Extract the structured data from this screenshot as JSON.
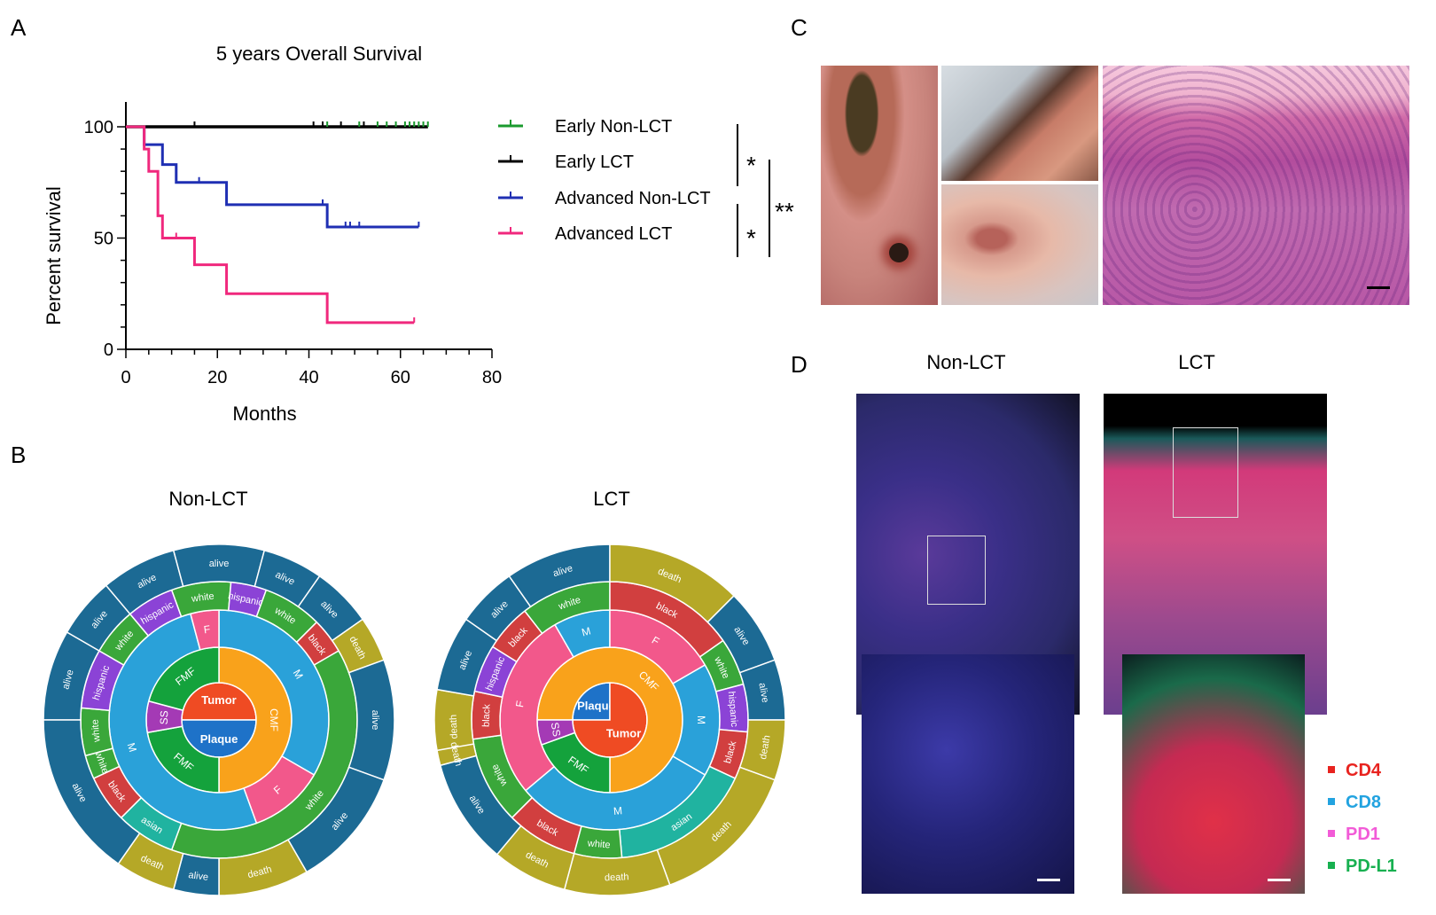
{
  "panels": {
    "A": "A",
    "B": "B",
    "C": "C",
    "D": "D"
  },
  "panelA": {
    "title": "5 years Overall Survival",
    "xlabel": "Months",
    "ylabel": "Percent survival",
    "xticks": [
      "0",
      "20",
      "40",
      "60",
      "80"
    ],
    "yticks": [
      "0",
      "50",
      "100"
    ],
    "legend": [
      {
        "name": "Early Non-LCT",
        "color": "#1a9a2e"
      },
      {
        "name": "Early LCT",
        "color": "#000000"
      },
      {
        "name": "Advanced Non-LCT",
        "color": "#1f2fb3"
      },
      {
        "name": "Advanced LCT",
        "color": "#f0287d"
      }
    ],
    "sig": {
      "s1": "*",
      "s2": "*",
      "s3": "**"
    }
  },
  "chart_data": {
    "type": "line",
    "title": "5 years Overall Survival",
    "xlabel": "Months",
    "ylabel": "Percent survival",
    "xlim": [
      0,
      80
    ],
    "ylim": [
      0,
      100
    ],
    "series": [
      {
        "name": "Early Non-LCT",
        "color": "#1a9a2e",
        "steps": [
          [
            0,
            100
          ],
          [
            66,
            100
          ]
        ],
        "censor": [
          44,
          51,
          55,
          57,
          59,
          61,
          62,
          63,
          64,
          65,
          66
        ]
      },
      {
        "name": "Early LCT",
        "color": "#000000",
        "steps": [
          [
            0,
            100
          ],
          [
            66,
            100
          ]
        ],
        "censor": [
          15,
          41,
          43,
          47,
          52
        ]
      },
      {
        "name": "Advanced Non-LCT",
        "color": "#1f2fb3",
        "steps": [
          [
            0,
            100
          ],
          [
            4,
            100
          ],
          [
            4,
            92
          ],
          [
            8,
            92
          ],
          [
            8,
            83
          ],
          [
            11,
            83
          ],
          [
            11,
            75
          ],
          [
            22,
            75
          ],
          [
            22,
            65
          ],
          [
            44,
            65
          ],
          [
            44,
            55
          ],
          [
            64,
            55
          ]
        ],
        "censor": [
          16,
          43,
          48,
          49,
          51,
          64
        ]
      },
      {
        "name": "Advanced LCT",
        "color": "#f0287d",
        "steps": [
          [
            0,
            100
          ],
          [
            4,
            100
          ],
          [
            4,
            90
          ],
          [
            5,
            90
          ],
          [
            5,
            80
          ],
          [
            7,
            80
          ],
          [
            7,
            60
          ],
          [
            8,
            60
          ],
          [
            8,
            50
          ],
          [
            15,
            50
          ],
          [
            15,
            38
          ],
          [
            22,
            38
          ],
          [
            22,
            25
          ],
          [
            44,
            25
          ],
          [
            44,
            12
          ],
          [
            63,
            12
          ]
        ],
        "censor": [
          11,
          63
        ]
      }
    ]
  },
  "panelB": {
    "left_title": "Non-LCT",
    "right_title": "LCT"
  },
  "panelD": {
    "left_title": "Non-LCT",
    "right_title": "LCT",
    "legend": [
      {
        "name": "CD4",
        "color": "#e8231f"
      },
      {
        "name": "CD8",
        "color": "#22a3e0"
      },
      {
        "name": "PD1",
        "color": "#f25bd7"
      },
      {
        "name": "PD-L1",
        "color": "#17b050"
      }
    ]
  },
  "sunburst_left": {
    "center": [
      {
        "label": "Tumor",
        "color": "#ef4b23",
        "a0": -90,
        "a1": 90
      },
      {
        "label": "Plaque",
        "color": "#1e72c8",
        "a0": 90,
        "a1": 270
      }
    ],
    "ring1": [
      {
        "label": "CMF",
        "color": "#f9a21b",
        "a0": 0,
        "a1": 180
      },
      {
        "label": "FMF",
        "color": "#14a23c",
        "a0": 180,
        "a1": 260
      },
      {
        "label": "SS",
        "color": "#a43ab5",
        "a0": 260,
        "a1": 285
      },
      {
        "label": "FMF",
        "color": "#14a23c",
        "a0": 285,
        "a1": 360
      }
    ],
    "ring2": [
      {
        "label": "M",
        "color": "#2aa1d9",
        "a0": 0,
        "a1": 120
      },
      {
        "label": "F",
        "color": "#f2588b",
        "a0": 120,
        "a1": 160
      },
      {
        "label": "M",
        "color": "#2aa1d9",
        "a0": 160,
        "a1": 345
      },
      {
        "label": "F",
        "color": "#f2588b",
        "a0": 345,
        "a1": 360
      }
    ],
    "ring3": [
      {
        "label": "white",
        "color": "#3aa73a",
        "a0": -105,
        "a1": -85
      },
      {
        "label": "hispanic",
        "color": "#8b43d6",
        "a0": -85,
        "a1": -60
      },
      {
        "label": "white",
        "color": "#3aa73a",
        "a0": -60,
        "a1": -40
      },
      {
        "label": "hispanic",
        "color": "#8b43d6",
        "a0": -40,
        "a1": -20
      },
      {
        "label": "white",
        "color": "#3aa73a",
        "a0": -20,
        "a1": 5
      },
      {
        "label": "hispanic",
        "color": "#8b43d6",
        "a0": 5,
        "a1": 20
      },
      {
        "label": "white",
        "color": "#3aa73a",
        "a0": 20,
        "a1": 45
      },
      {
        "label": "black",
        "color": "#d13f3f",
        "a0": 45,
        "a1": 60
      },
      {
        "label": "white",
        "color": "#3aa73a",
        "a0": 60,
        "a1": 200
      },
      {
        "label": "asian",
        "color": "#20b3a0",
        "a0": 200,
        "a1": 225
      },
      {
        "label": "black",
        "color": "#d13f3f",
        "a0": 225,
        "a1": 245
      },
      {
        "label": "white",
        "color": "#3aa73a",
        "a0": 245,
        "a1": 255
      }
    ],
    "ring4": [
      {
        "label": "alive",
        "color": "#1c6a94",
        "a0": -90,
        "a1": -60
      },
      {
        "label": "alive",
        "color": "#1c6a94",
        "a0": -60,
        "a1": -40
      },
      {
        "label": "alive",
        "color": "#1c6a94",
        "a0": -40,
        "a1": -15
      },
      {
        "label": "alive",
        "color": "#1c6a94",
        "a0": -15,
        "a1": 15
      },
      {
        "label": "alive",
        "color": "#1c6a94",
        "a0": 15,
        "a1": 35
      },
      {
        "label": "alive",
        "color": "#1c6a94",
        "a0": 35,
        "a1": 55
      },
      {
        "label": "death",
        "color": "#b5a827",
        "a0": 55,
        "a1": 70
      },
      {
        "label": "alive",
        "color": "#1c6a94",
        "a0": 70,
        "a1": 110
      },
      {
        "label": "alive",
        "color": "#1c6a94",
        "a0": 110,
        "a1": 150
      },
      {
        "label": "death",
        "color": "#b5a827",
        "a0": 150,
        "a1": 180
      },
      {
        "label": "alive",
        "color": "#1c6a94",
        "a0": 180,
        "a1": 195
      },
      {
        "label": "death",
        "color": "#b5a827",
        "a0": 195,
        "a1": 215
      },
      {
        "label": "alive",
        "color": "#1c6a94",
        "a0": 215,
        "a1": 270
      }
    ]
  },
  "sunburst_right": {
    "center": [
      {
        "label": "Plaque",
        "color": "#1e72c8",
        "a0": -90,
        "a1": 0
      },
      {
        "label": "Tumor",
        "color": "#ef4b23",
        "a0": 0,
        "a1": 270
      }
    ],
    "ring1": [
      {
        "label": "CMF",
        "color": "#f9a21b",
        "a0": -90,
        "a1": 180
      },
      {
        "label": "FMF",
        "color": "#14a23c",
        "a0": 180,
        "a1": 250
      },
      {
        "label": "SS",
        "color": "#a43ab5",
        "a0": 250,
        "a1": 270
      }
    ],
    "ring2": [
      {
        "label": "F",
        "color": "#f2588b",
        "a0": -130,
        "a1": -30
      },
      {
        "label": "M",
        "color": "#2aa1d9",
        "a0": -30,
        "a1": 0
      },
      {
        "label": "F",
        "color": "#f2588b",
        "a0": 0,
        "a1": 60
      },
      {
        "label": "M",
        "color": "#2aa1d9",
        "a0": 60,
        "a1": 120
      },
      {
        "label": "M",
        "color": "#2aa1d9",
        "a0": 120,
        "a1": 230
      }
    ],
    "ring3": [
      {
        "label": "white",
        "color": "#3aa73a",
        "a0": -135,
        "a1": -98
      },
      {
        "label": "black",
        "color": "#d13f3f",
        "a0": -98,
        "a1": -78
      },
      {
        "label": "hispanic",
        "color": "#8b43d6",
        "a0": -78,
        "a1": -58
      },
      {
        "label": "black",
        "color": "#d13f3f",
        "a0": -58,
        "a1": -38
      },
      {
        "label": "white",
        "color": "#3aa73a",
        "a0": -38,
        "a1": 0
      },
      {
        "label": "black",
        "color": "#d13f3f",
        "a0": 0,
        "a1": 55
      },
      {
        "label": "white",
        "color": "#3aa73a",
        "a0": 55,
        "a1": 75
      },
      {
        "label": "hispanic",
        "color": "#8b43d6",
        "a0": 75,
        "a1": 95
      },
      {
        "label": "black",
        "color": "#d13f3f",
        "a0": 95,
        "a1": 115
      },
      {
        "label": "asian",
        "color": "#20b3a0",
        "a0": 115,
        "a1": 175
      },
      {
        "label": "white",
        "color": "#3aa73a",
        "a0": 175,
        "a1": 195
      },
      {
        "label": "black",
        "color": "#d13f3f",
        "a0": 195,
        "a1": 225
      }
    ],
    "ring4": [
      {
        "label": "death",
        "color": "#b5a827",
        "a0": -105,
        "a1": -80
      },
      {
        "label": "alive",
        "color": "#1c6a94",
        "a0": -80,
        "a1": -55
      },
      {
        "label": "alive",
        "color": "#1c6a94",
        "a0": -55,
        "a1": -35
      },
      {
        "label": "alive",
        "color": "#1c6a94",
        "a0": -35,
        "a1": 0
      },
      {
        "label": "death",
        "color": "#b5a827",
        "a0": 0,
        "a1": 45
      },
      {
        "label": "alive",
        "color": "#1c6a94",
        "a0": 45,
        "a1": 70
      },
      {
        "label": "alive",
        "color": "#1c6a94",
        "a0": 70,
        "a1": 90
      },
      {
        "label": "death",
        "color": "#b5a827",
        "a0": 90,
        "a1": 110
      },
      {
        "label": "death",
        "color": "#b5a827",
        "a0": 110,
        "a1": 160
      },
      {
        "label": "death",
        "color": "#b5a827",
        "a0": 160,
        "a1": 195
      },
      {
        "label": "death",
        "color": "#b5a827",
        "a0": 195,
        "a1": 220
      },
      {
        "label": "alive",
        "color": "#1c6a94",
        "a0": 220,
        "a1": 255
      },
      {
        "label": "death",
        "color": "#b5a827",
        "a0": 255,
        "a1": 260
      }
    ]
  }
}
